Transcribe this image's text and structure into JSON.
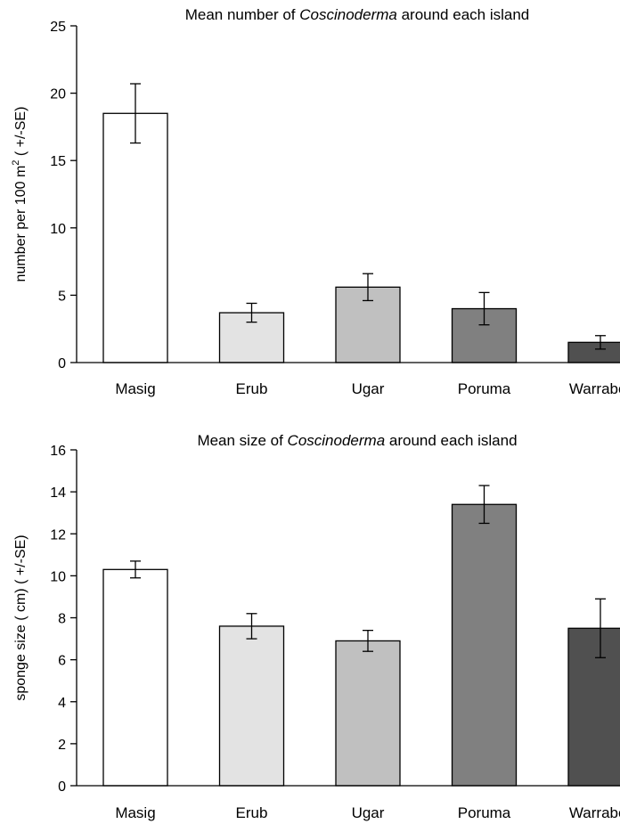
{
  "chart_data": [
    {
      "type": "bar",
      "title_prefix": "Mean number of ",
      "title_italic": "Coscinoderma",
      "title_suffix": " around each island",
      "ylabel_main": "number per 100 m",
      "ylabel_sup": "2",
      "ylabel_tail": "  ( +/-SE)",
      "ylim": [
        0,
        25
      ],
      "yticks": [
        "0",
        "5",
        "10",
        "15",
        "20",
        "25"
      ],
      "categories": [
        "Masig",
        "Erub",
        "Ugar",
        "Poruma",
        "Warraber"
      ],
      "values": [
        18.5,
        3.7,
        5.6,
        4.0,
        1.5
      ],
      "errors": [
        2.2,
        0.7,
        1.0,
        1.2,
        0.5
      ],
      "colors": [
        "#ffffff",
        "#e3e3e3",
        "#c0c0c0",
        "#808080",
        "#505050"
      ],
      "grid": false,
      "legend": "none"
    },
    {
      "type": "bar",
      "title_prefix": "Mean size of ",
      "title_italic": "Coscinoderma",
      "title_suffix": " around each island",
      "ylabel_main": "sponge size  ( cm)    ( +/-SE)",
      "ylabel_sup": "",
      "ylabel_tail": "",
      "ylim": [
        0,
        16
      ],
      "yticks": [
        "0",
        "2",
        "4",
        "6",
        "8",
        "10",
        "12",
        "14",
        "16"
      ],
      "categories": [
        "Masig",
        "Erub",
        "Ugar",
        "Poruma",
        "Warraber"
      ],
      "values": [
        10.3,
        7.6,
        6.9,
        13.4,
        7.5
      ],
      "errors": [
        0.4,
        0.6,
        0.5,
        0.9,
        1.4
      ],
      "colors": [
        "#ffffff",
        "#e3e3e3",
        "#c0c0c0",
        "#808080",
        "#505050"
      ],
      "grid": false,
      "legend": "none"
    }
  ]
}
